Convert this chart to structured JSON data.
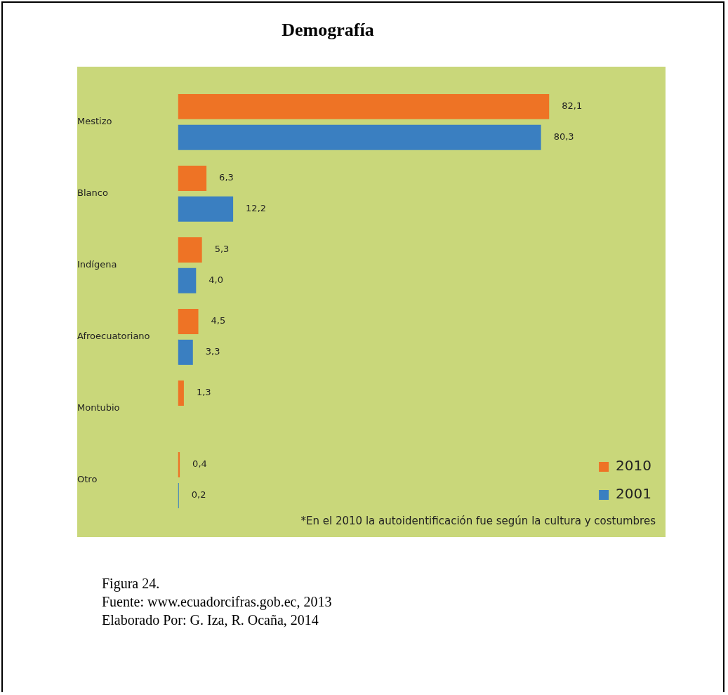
{
  "chart_data": {
    "type": "bar",
    "orientation": "horizontal",
    "title": "Demografía",
    "categories": [
      "Mestizo",
      "Blanco",
      "Indígena",
      "Afroecuatoriano",
      "Montubio",
      "Otro"
    ],
    "series": [
      {
        "name": "2010",
        "color": "#ee7325",
        "values": [
          82.1,
          6.3,
          5.3,
          4.5,
          1.3,
          0.4
        ],
        "value_labels": [
          "82,1",
          "6,3",
          "5,3",
          "4,5",
          "1,3",
          "0,4"
        ]
      },
      {
        "name": "2001",
        "color": "#3a7fc1",
        "values": [
          80.3,
          12.2,
          4.0,
          3.3,
          null,
          0.2
        ],
        "value_labels": [
          "80,3",
          "12,2",
          "4,0",
          "3,3",
          null,
          "0,2"
        ]
      }
    ],
    "legend": "right",
    "annotations": [
      "*En el 2010 la autoidentificación fue según la cultura y costumbres",
      "Figura 24.",
      "Fuente: www.ecuadorcifras.gob.ec, 2013",
      "Elaborado Por: G. Iza, R. Ocaña, 2014"
    ]
  }
}
